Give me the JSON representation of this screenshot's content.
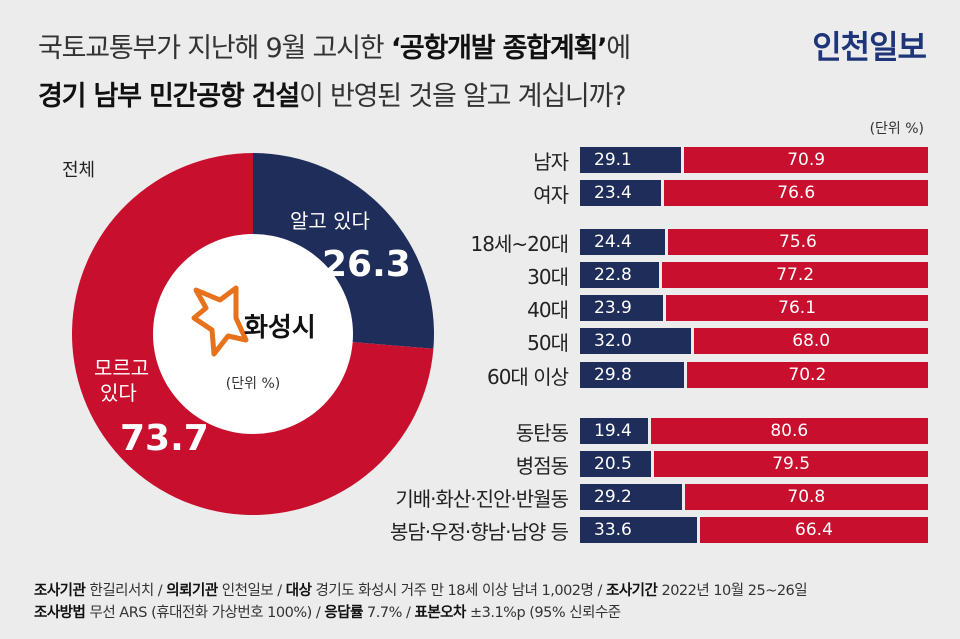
{
  "title": {
    "line1_plain": "국토교통부가 지난해 9월 고시한 ",
    "line1_bold": "‘공항개발 종합계획’",
    "line1_tail": "에",
    "line2_bold": "경기 남부 민간공항 건설",
    "line2_tail": "이 반영된 것을 알고 계십니까?"
  },
  "brand": "인천일보",
  "unit_right": "(단위 %)",
  "pie_section": {
    "label": "전체",
    "center_logo_text": "화성시",
    "center_unit": "(단위 %)",
    "know_label": "알고 있다",
    "know_value": "26.3",
    "dk_label_1": "모르고",
    "dk_label_2": "있다",
    "dk_value": "73.7"
  },
  "colors": {
    "know": "#1f2d5a",
    "dont_know": "#c8102e",
    "background": "#ececec",
    "brand": "#1e3579"
  },
  "chart_data": [
    {
      "type": "pie",
      "categories": [
        "알고 있다",
        "모르고 있다"
      ],
      "values": [
        26.3,
        73.7
      ]
    },
    {
      "type": "bar",
      "stacked": true,
      "orientation": "horizontal",
      "categories": [
        "남자",
        "여자",
        "18세~20대",
        "30대",
        "40대",
        "50대",
        "60대 이상",
        "동탄동",
        "병점동",
        "기배·화산·진안·반월동",
        "봉담·우정·향남·남양 등"
      ],
      "series": [
        {
          "name": "알고 있다",
          "values": [
            29.1,
            23.4,
            24.4,
            22.8,
            23.9,
            32.0,
            29.8,
            19.4,
            20.5,
            29.2,
            33.6
          ]
        },
        {
          "name": "모르고 있다",
          "values": [
            70.9,
            76.6,
            75.6,
            77.2,
            76.1,
            68.0,
            70.2,
            80.6,
            79.5,
            70.8,
            66.4
          ]
        }
      ],
      "labels_know": [
        "29.1",
        "23.4",
        "24.4",
        "22.8",
        "23.9",
        "32.0",
        "29.8",
        "19.4",
        "20.5",
        "29.2",
        "33.6"
      ],
      "labels_dk": [
        "70.9",
        "76.6",
        "75.6",
        "77.2",
        "76.1",
        "68.0",
        "70.2",
        "80.6",
        "79.5",
        "70.8",
        "66.4"
      ]
    }
  ],
  "footer": {
    "line1": [
      {
        "k": "조사기관",
        "v": " 한길리서치 / "
      },
      {
        "k": "의뢰기관",
        "v": " 인천일보 / "
      },
      {
        "k": "대상",
        "v": " 경기도 화성시 거주 만 18세 이상 남녀 1,002명 / "
      },
      {
        "k": "조사기간",
        "v": " 2022년 10월 25~26일"
      }
    ],
    "line2": [
      {
        "k": "조사방법",
        "v": " 무선 ARS (휴대전화 가상번호 100%) / "
      },
      {
        "k": "응답률",
        "v": " 7.7% / "
      },
      {
        "k": "표본오차",
        "v": " ±3.1%p (95% 신뢰수준"
      }
    ]
  }
}
